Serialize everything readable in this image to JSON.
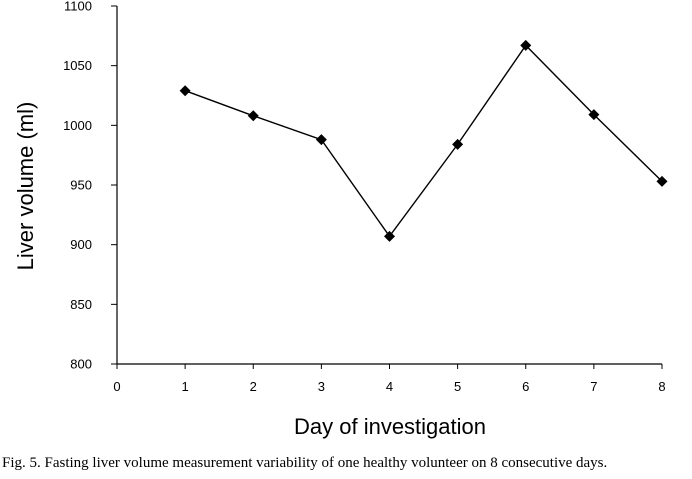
{
  "chart_data": {
    "type": "line",
    "title": "",
    "xlabel": "Day of investigation",
    "ylabel": "Liver volume (ml)",
    "x_ticks": [
      "0",
      "1",
      "2",
      "3",
      "4",
      "5",
      "6",
      "7",
      "8"
    ],
    "y_ticks": [
      "800",
      "850",
      "900",
      "950",
      "1000",
      "1050",
      "1100"
    ],
    "xlim": [
      0,
      8
    ],
    "ylim": [
      800,
      1100
    ],
    "grid": false,
    "marker": "diamond",
    "series": [
      {
        "x": [
          1,
          2,
          3,
          4,
          5,
          6,
          7,
          8
        ],
        "y": [
          1029,
          1008,
          988,
          907,
          984,
          1067,
          1009,
          953
        ]
      }
    ]
  },
  "caption": "Fig. 5. Fasting liver volume measurement variability of one healthy volunteer on 8 consecutive days."
}
